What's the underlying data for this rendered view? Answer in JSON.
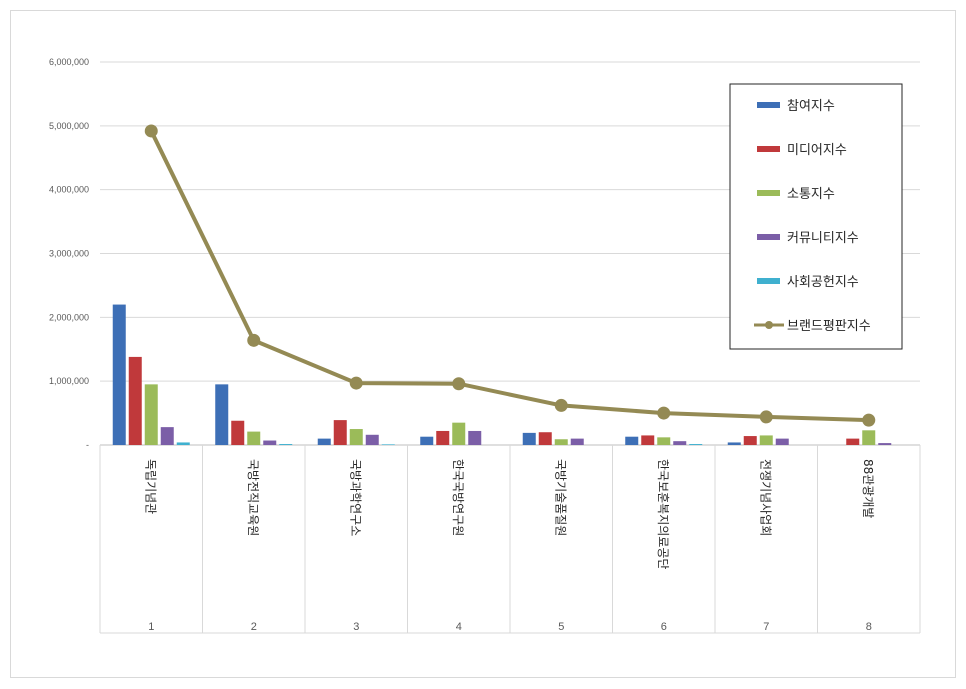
{
  "chart_data": {
    "type": "bar",
    "categories": [
      "1",
      "2",
      "3",
      "4",
      "5",
      "6",
      "7",
      "8"
    ],
    "category_names": [
      "독립기념관",
      "국방전직교육원",
      "국방과학연구소",
      "한국국방연구원",
      "국방기술품질원",
      "한국보훈복지의료공단",
      "전쟁기념사업회",
      "88관광개발"
    ],
    "yticks": [
      "-",
      "1,000,000",
      "2,000,000",
      "3,000,000",
      "4,000,000",
      "5,000,000",
      "6,000,000"
    ],
    "ylim": [
      0,
      6000000
    ],
    "series": [
      {
        "name": "참여지수",
        "color": "#3d6fb6",
        "values": [
          2200000,
          950000,
          100000,
          130000,
          190000,
          130000,
          40000,
          0
        ]
      },
      {
        "name": "미디어지수",
        "color": "#c0393b",
        "values": [
          1380000,
          380000,
          390000,
          220000,
          200000,
          150000,
          140000,
          100000
        ]
      },
      {
        "name": "소통지수",
        "color": "#9bbb59",
        "values": [
          950000,
          210000,
          250000,
          350000,
          90000,
          120000,
          150000,
          230000
        ]
      },
      {
        "name": "커뮤니티지수",
        "color": "#7b5ea7",
        "values": [
          280000,
          70000,
          160000,
          220000,
          100000,
          60000,
          100000,
          30000
        ]
      },
      {
        "name": "사회공헌지수",
        "color": "#3fb0cf",
        "values": [
          40000,
          15000,
          10000,
          0,
          0,
          15000,
          0,
          0
        ]
      }
    ],
    "line_series": {
      "name": "브랜드평판지수",
      "color": "#948a54",
      "values": [
        4920000,
        1640000,
        970000,
        960000,
        620000,
        500000,
        440000,
        390000
      ]
    },
    "grid": true,
    "legend_position": "right"
  }
}
